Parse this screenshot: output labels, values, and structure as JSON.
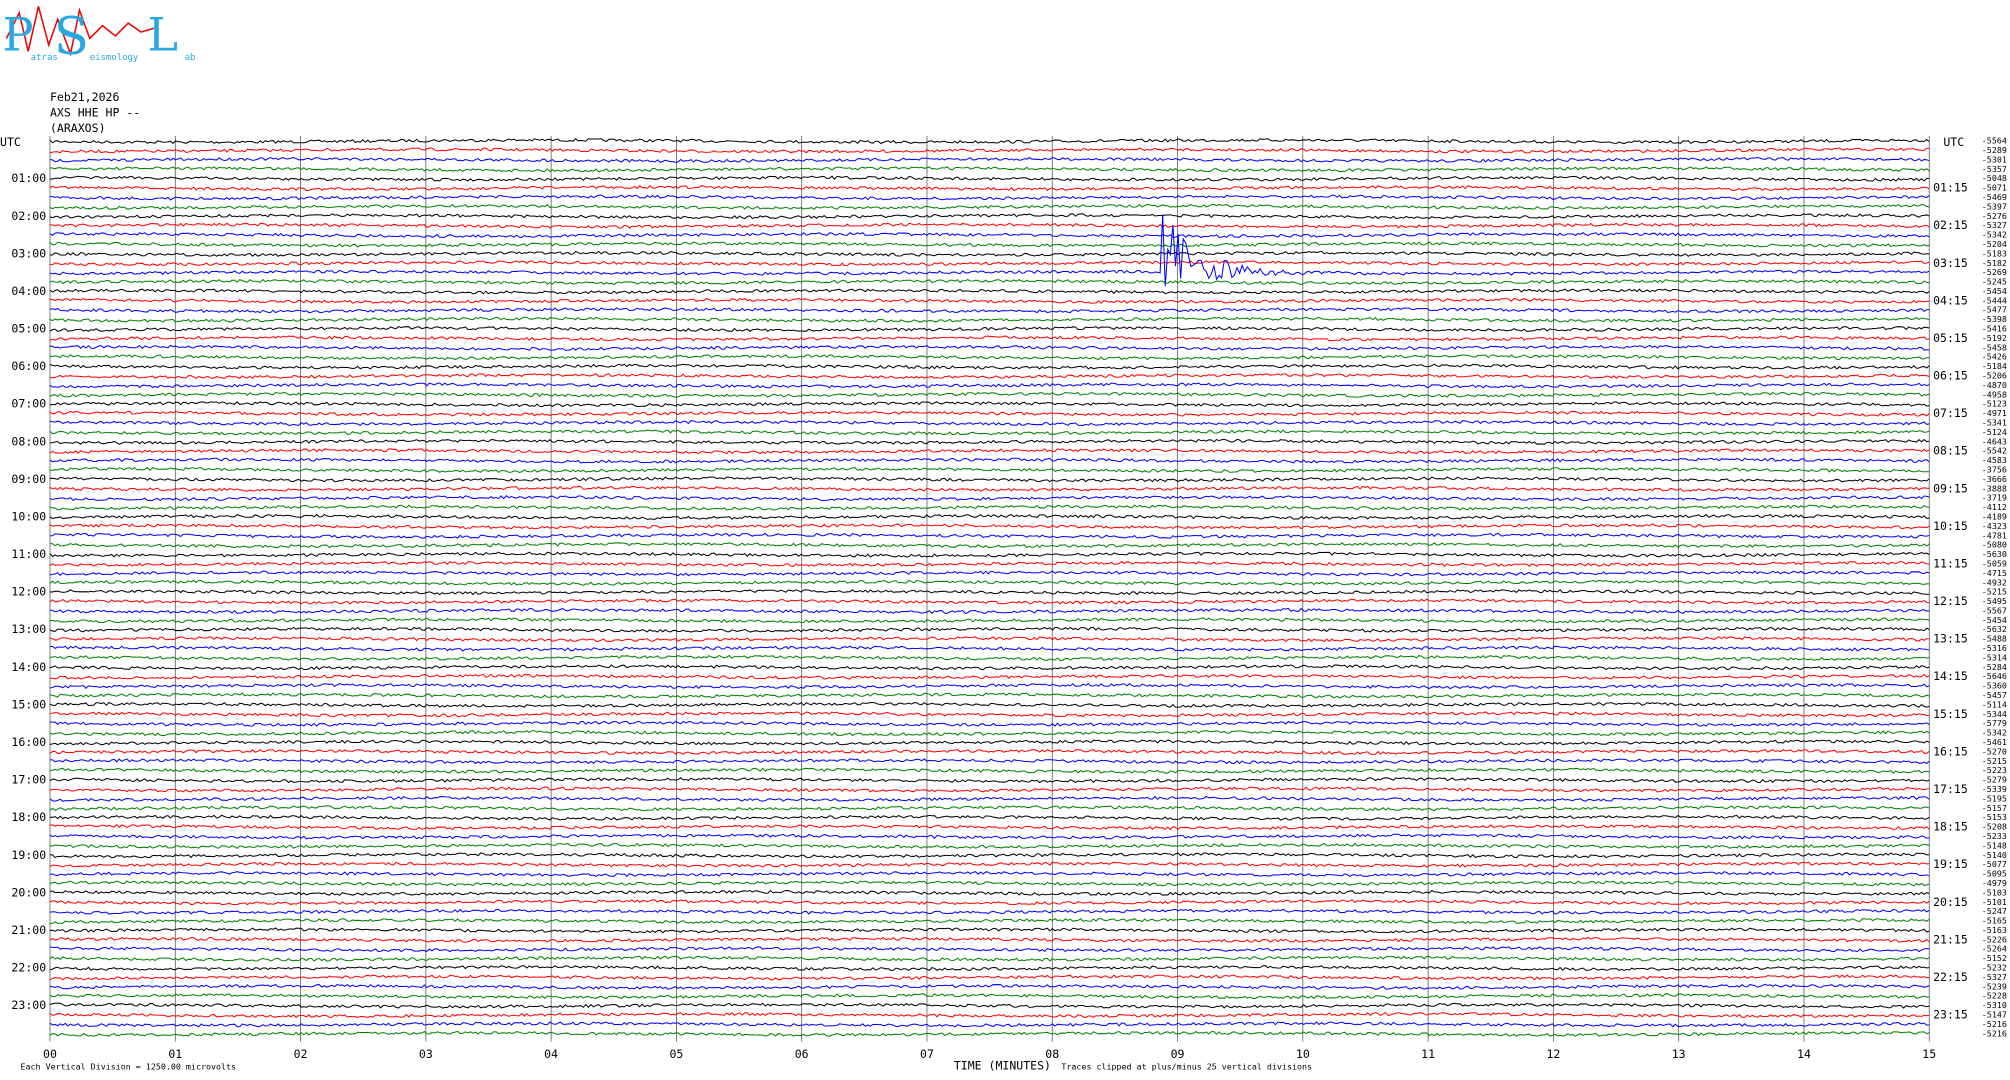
{
  "logo": {
    "letters": [
      "P",
      "S",
      "L"
    ],
    "words": [
      "atras",
      "eismology",
      "ab"
    ]
  },
  "chart_data": {
    "type": "helicorder",
    "header": [
      "Feb21,2026",
      "AXS HHE HP --",
      "(ARAXOS)"
    ],
    "left_axis_title": "UTC",
    "right_axis_title": "UTC",
    "left_labels": [
      "01:00",
      "02:00",
      "03:00",
      "04:00",
      "05:00",
      "06:00",
      "07:00",
      "08:00",
      "09:00",
      "10:00",
      "11:00",
      "12:00",
      "13:00",
      "14:00",
      "15:00",
      "16:00",
      "17:00",
      "18:00",
      "19:00",
      "20:00",
      "21:00",
      "22:00",
      "23:00"
    ],
    "right_labels": [
      "01:15",
      "02:15",
      "03:15",
      "04:15",
      "05:15",
      "06:15",
      "07:15",
      "08:15",
      "09:15",
      "10:15",
      "11:15",
      "12:15",
      "13:15",
      "14:15",
      "15:15",
      "16:15",
      "17:15",
      "18:15",
      "19:15",
      "20:15",
      "21:15",
      "22:15",
      "23:15"
    ],
    "trace_offsets": [
      "-5564",
      "-5289",
      "-5301",
      "-5357",
      "-5048",
      "-5071",
      "-5469",
      "-5397",
      "-5276",
      "-5327",
      "-5342",
      "-5204",
      "-5183",
      "-5182",
      "-5269",
      "-5245",
      "-5454",
      "-5444",
      "-5477",
      "-5398",
      "-5416",
      "-5192",
      "-5458",
      "-5426",
      "-5184",
      "-5206",
      "-4870",
      "-4958",
      "-5123",
      "-4971",
      "-5341",
      "-5124",
      "-4643",
      "-5542",
      "-4583",
      "-3756",
      "-3666",
      "-3888",
      "-3719",
      "-4112",
      "-4189",
      "-4323",
      "-4781",
      "-5080",
      "-5630",
      "-5059",
      "-4715",
      "-4932",
      "-5215",
      "-5495",
      "-5567",
      "-5454",
      "-5632",
      "-5488",
      "-5316",
      "-5314",
      "-5284",
      "-5646",
      "-5360",
      "-5457",
      "-5114",
      "-5344",
      "-5779",
      "-5342",
      "-5461",
      "-5270",
      "-5215",
      "-5223",
      "-5279",
      "-5339",
      "-5195",
      "-5157",
      "-5153",
      "-5208",
      "-5233",
      "-5148",
      "-5140",
      "-5077",
      "-5095",
      "-4979",
      "-5103",
      "-5101",
      "-5247",
      "-5165",
      "-5163",
      "-5226",
      "-5264",
      "-5152",
      "-5232",
      "-5327",
      "-5239",
      "-5228",
      "-5310",
      "-5147",
      "-5216",
      "-5216"
    ],
    "trace_colors": [
      "#000000",
      "#ff0000",
      "#0000ff",
      "#008000"
    ],
    "xlim": [
      0,
      15
    ],
    "xticks": [
      {
        "value": 0,
        "label": "00"
      },
      {
        "value": 1,
        "label": "01"
      },
      {
        "value": 2,
        "label": "02"
      },
      {
        "value": 3,
        "label": "03"
      },
      {
        "value": 4,
        "label": "04"
      },
      {
        "value": 5,
        "label": "05"
      },
      {
        "value": 6,
        "label": "06"
      },
      {
        "value": 7,
        "label": "07"
      },
      {
        "value": 8,
        "label": "08"
      },
      {
        "value": 9,
        "label": "09"
      },
      {
        "value": 10,
        "label": "10"
      },
      {
        "value": 11,
        "label": "11"
      },
      {
        "value": 12,
        "label": "12"
      },
      {
        "value": 13,
        "label": "13"
      },
      {
        "value": 14,
        "label": "14"
      },
      {
        "value": 15,
        "label": "15"
      }
    ],
    "xlabel": "TIME (MINUTES)",
    "scale_note": "Each Vertical Division = 1250.00 microvolts",
    "clip_note": "Traces clipped at plus/minus 25 vertical divisions"
  }
}
